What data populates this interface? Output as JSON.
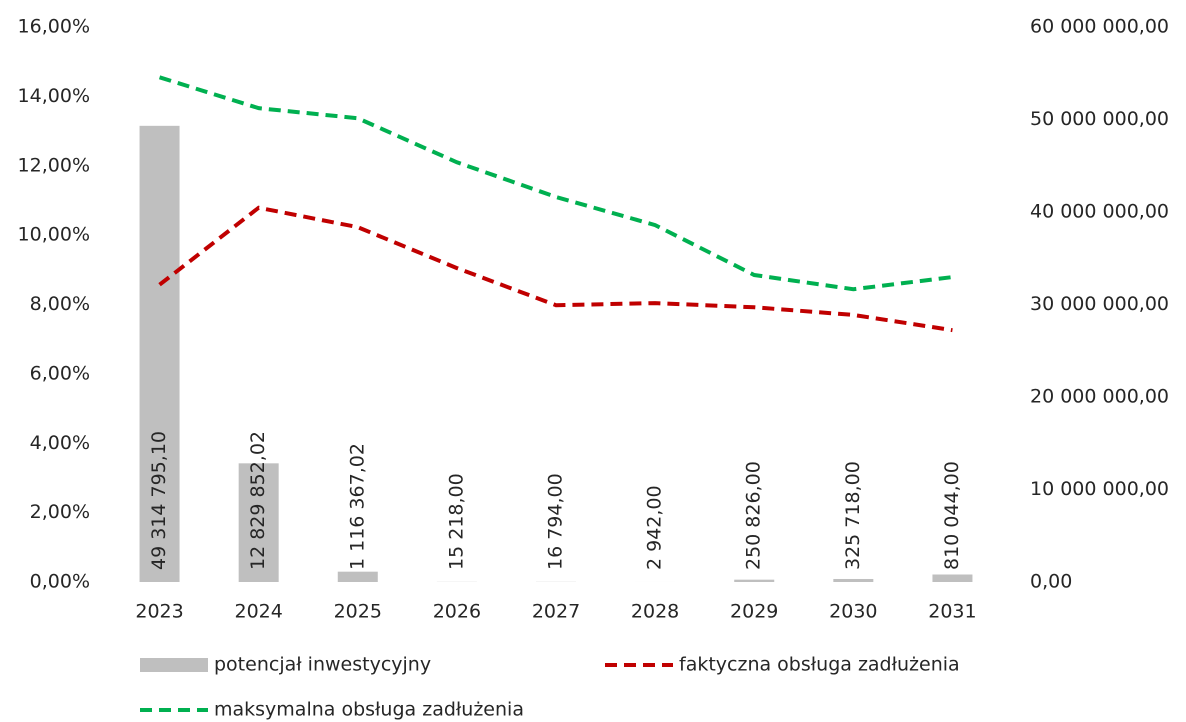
{
  "chart_data": {
    "type": "bar-line",
    "categories": [
      "2023",
      "2024",
      "2025",
      "2026",
      "2027",
      "2028",
      "2029",
      "2030",
      "2031"
    ],
    "series": [
      {
        "name": "potencjał inwestycyjny",
        "type": "bar",
        "axis": "y2",
        "color": "#bfbfbf",
        "values": [
          49314795.1,
          12829852.02,
          1116367.02,
          15218.0,
          16794.0,
          2942.0,
          250826.0,
          325718.0,
          810044.0
        ],
        "value_labels": [
          "49 314 795,10",
          "12 829 852,02",
          "1 116 367,02",
          "15 218,00",
          "16 794,00",
          "2 942,00",
          "250 826,00",
          "325 718,00",
          "810 044,00"
        ]
      },
      {
        "name": "faktyczna obsługa zadłużenia",
        "type": "line",
        "axis": "y",
        "color": "#c00000",
        "values": [
          8.57,
          10.79,
          10.23,
          9.05,
          7.98,
          8.04,
          7.92,
          7.7,
          7.26
        ]
      },
      {
        "name": "maksymalna obsługa zadłużenia",
        "type": "line",
        "axis": "y",
        "color": "#00b050",
        "values": [
          14.55,
          13.66,
          13.37,
          12.1,
          11.1,
          10.29,
          8.85,
          8.44,
          8.79
        ]
      }
    ],
    "ylim": [
      0,
      16
    ],
    "yticks": [
      {
        "value": 0,
        "label": "0,00%"
      },
      {
        "value": 2,
        "label": "2,00%"
      },
      {
        "value": 4,
        "label": "4,00%"
      },
      {
        "value": 6,
        "label": "6,00%"
      },
      {
        "value": 8,
        "label": "8,00%"
      },
      {
        "value": 10,
        "label": "10,00%"
      },
      {
        "value": 12,
        "label": "12,00%"
      },
      {
        "value": 14,
        "label": "14,00%"
      },
      {
        "value": 16,
        "label": "16,00%"
      }
    ],
    "y2lim": [
      0,
      60000000
    ],
    "y2ticks": [
      {
        "value": 0,
        "label": "0,00"
      },
      {
        "value": 10000000,
        "label": "10 000 000,00"
      },
      {
        "value": 20000000,
        "label": "20 000 000,00"
      },
      {
        "value": 30000000,
        "label": "30 000 000,00"
      },
      {
        "value": 40000000,
        "label": "40 000 000,00"
      },
      {
        "value": 50000000,
        "label": "50 000 000,00"
      },
      {
        "value": 60000000,
        "label": "60 000 000,00"
      }
    ],
    "legend": "bottom"
  }
}
